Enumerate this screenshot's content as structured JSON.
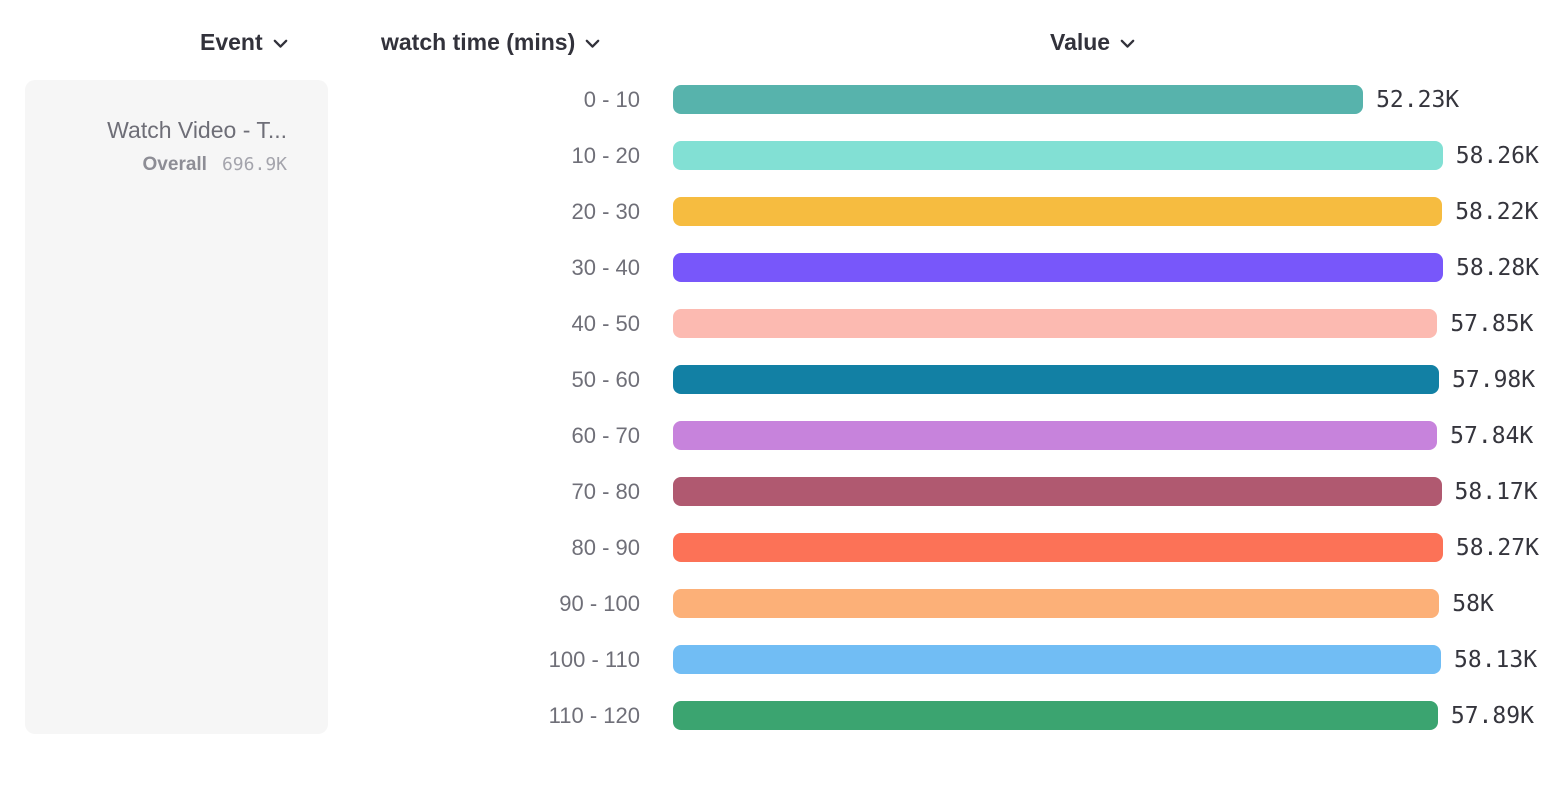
{
  "header": {
    "columns": [
      {
        "label": "Event"
      },
      {
        "label": "watch time (mins)"
      },
      {
        "label": "Value"
      }
    ]
  },
  "event_card": {
    "title": "Watch Video - T...",
    "overall_label": "Overall",
    "overall_value": "696.9K"
  },
  "chart_data": {
    "type": "bar",
    "orientation": "horizontal",
    "title": "",
    "xlabel": "Value",
    "ylabel": "watch time (mins)",
    "grid": false,
    "xlim": [
      0,
      58280
    ],
    "categories": [
      "0 - 10",
      "10 - 20",
      "20 - 30",
      "30 - 40",
      "40 - 50",
      "50 - 60",
      "60 - 70",
      "70 - 80",
      "80 - 90",
      "90 - 100",
      "100 - 110",
      "110 - 120"
    ],
    "values": [
      52230,
      58260,
      58220,
      58280,
      57850,
      57980,
      57840,
      58170,
      58270,
      58000,
      58130,
      57890
    ],
    "value_labels": [
      "52.23K",
      "58.26K",
      "58.22K",
      "58.28K",
      "57.85K",
      "57.98K",
      "57.84K",
      "58.17K",
      "58.27K",
      "58K",
      "58.13K",
      "57.89K"
    ],
    "bar_colors": [
      "#57B3AC",
      "#82E0D4",
      "#F6BC40",
      "#7857FA",
      "#FCBAB1",
      "#1280A4",
      "#C783DC",
      "#B05970",
      "#FC7257",
      "#FCB078",
      "#71BDF4",
      "#3BA470"
    ]
  },
  "ui_colors": {
    "header_text": "#32323b",
    "category_text": "#6f6f78",
    "value_text": "#35353d",
    "card_background": "#f6f6f6"
  }
}
